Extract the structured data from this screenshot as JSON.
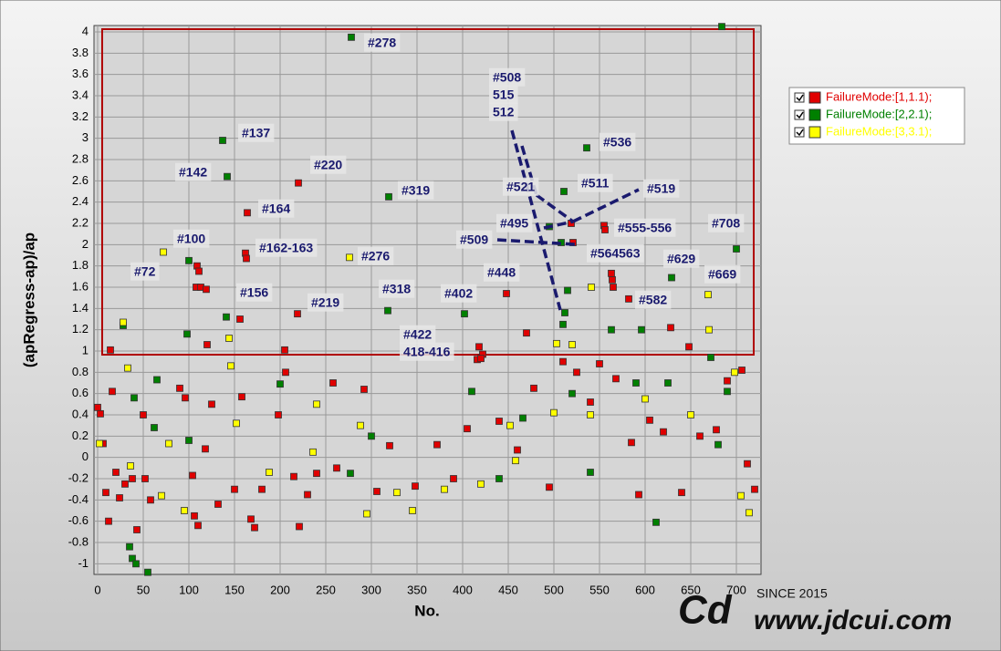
{
  "chart_data": {
    "type": "scatter",
    "x_label": "No.",
    "y_label": "(apRegress-ap)/ap",
    "xlim": [
      -4,
      727
    ],
    "ylim": [
      -1.1,
      4.06
    ],
    "xticks": [
      0,
      50,
      100,
      150,
      200,
      250,
      300,
      350,
      400,
      450,
      500,
      550,
      600,
      650,
      700
    ],
    "yticks": [
      -1,
      -0.8,
      -0.6,
      -0.4,
      -0.2,
      0,
      0.2,
      0.4,
      0.6,
      0.8,
      1,
      1.2,
      1.4,
      1.6,
      1.8,
      2,
      2.2,
      2.4,
      2.6,
      2.8,
      3,
      3.2,
      3.4,
      3.6,
      3.8,
      4
    ],
    "grid": true,
    "legend": "upper right",
    "series": [
      {
        "name": "FailureMode:[1,1.1);",
        "color": "#e00000",
        "x": [
          220,
          164,
          162,
          163,
          156,
          219,
          109,
          111,
          108,
          113,
          119,
          120,
          422,
          418,
          416,
          448,
          519,
          521,
          555,
          556,
          564,
          563,
          582,
          14,
          205,
          565,
          0,
          3,
          6,
          9,
          12,
          16,
          20,
          24,
          30,
          38,
          43,
          50,
          52,
          58,
          90,
          96,
          104,
          106,
          110,
          118,
          125,
          132,
          150,
          158,
          168,
          172,
          180,
          198,
          206,
          215,
          221,
          230,
          240,
          258,
          262,
          292,
          306,
          320,
          348,
          372,
          390,
          405,
          420,
          440,
          460,
          470,
          478,
          495,
          510,
          525,
          540,
          550,
          568,
          585,
          593,
          605,
          620,
          628,
          640,
          648,
          660,
          678,
          690,
          706,
          712,
          720
        ],
        "values": [
          2.58,
          2.3,
          1.92,
          1.87,
          1.3,
          1.35,
          1.8,
          1.75,
          1.6,
          1.6,
          1.58,
          1.06,
          0.97,
          1.04,
          0.92,
          1.54,
          2.2,
          2.02,
          2.18,
          2.14,
          1.67,
          1.73,
          1.49,
          1.01,
          1.01,
          1.6,
          0.47,
          0.41,
          0.13,
          -0.33,
          -0.6,
          0.62,
          -0.14,
          -0.38,
          -0.25,
          -0.2,
          -0.68,
          0.4,
          -0.2,
          -0.4,
          0.65,
          0.56,
          -0.17,
          -0.55,
          -0.64,
          0.08,
          0.5,
          -0.44,
          -0.3,
          0.57,
          -0.58,
          -0.66,
          -0.3,
          0.4,
          0.8,
          -0.18,
          -0.65,
          -0.35,
          -0.15,
          0.7,
          -0.1,
          0.64,
          -0.32,
          0.11,
          -0.27,
          0.12,
          -0.2,
          0.27,
          0.93,
          0.34,
          0.07,
          1.17,
          0.65,
          -0.28,
          0.9,
          0.8,
          0.52,
          0.88,
          0.74,
          0.14,
          -0.35,
          0.35,
          0.24,
          1.22,
          -0.33,
          1.04,
          0.2,
          0.26,
          0.72,
          0.82,
          -0.06,
          -0.3
        ]
      },
      {
        "name": "FailureMode:[2,2.1);",
        "color": "#008000",
        "x": [
          278,
          137,
          142,
          319,
          536,
          511,
          495,
          100,
          629,
          318,
          402,
          28,
          508,
          515,
          512,
          141,
          98,
          700,
          684,
          672,
          563,
          596,
          510,
          35,
          38,
          42,
          40,
          55,
          65,
          62,
          100,
          200,
          277,
          300,
          410,
          440,
          466,
          520,
          540,
          590,
          612,
          625,
          680,
          690
        ],
        "values": [
          3.95,
          2.98,
          2.64,
          2.45,
          2.91,
          2.5,
          2.17,
          1.85,
          1.69,
          1.38,
          1.35,
          1.24,
          2.02,
          1.57,
          1.36,
          1.32,
          1.16,
          1.96,
          4.05,
          0.94,
          1.2,
          1.2,
          1.25,
          -0.84,
          -0.95,
          -1.0,
          0.56,
          -1.08,
          0.73,
          0.28,
          0.16,
          0.69,
          -0.15,
          0.2,
          0.62,
          -0.2,
          0.37,
          0.6,
          -0.14,
          0.7,
          -0.61,
          0.7,
          0.12,
          0.62
        ]
      },
      {
        "name": "FailureMode:[3,3.1);",
        "color": "#ffff00",
        "x": [
          72,
          276,
          28,
          669,
          670,
          144,
          520,
          541,
          2,
          33,
          36,
          70,
          78,
          95,
          146,
          152,
          188,
          236,
          240,
          288,
          295,
          328,
          345,
          380,
          420,
          452,
          458,
          500,
          503,
          540,
          600,
          650,
          705,
          714,
          698
        ],
        "values": [
          1.93,
          1.88,
          1.27,
          1.53,
          1.2,
          1.12,
          1.06,
          1.6,
          0.13,
          0.84,
          -0.08,
          -0.36,
          0.13,
          -0.5,
          0.86,
          0.32,
          -0.14,
          0.05,
          0.5,
          0.3,
          -0.53,
          -0.33,
          -0.5,
          -0.3,
          -0.25,
          0.3,
          -0.03,
          0.42,
          1.07,
          0.4,
          0.55,
          0.4,
          -0.36,
          -0.52,
          0.8
        ]
      }
    ],
    "annotations": [
      "#278",
      "#137",
      "#142",
      "#220",
      "#319",
      "#164",
      "#100",
      "#162-163",
      "#276",
      "#72",
      "#156",
      "#219",
      "#318",
      "#402",
      "#422",
      "418-416",
      "#508",
      "515",
      "512",
      "#536",
      "#521",
      "#511",
      "#519",
      "#495",
      "#555-556",
      "#708",
      "#509",
      "#564563",
      "#629",
      "#448",
      "#669",
      "#582"
    ]
  },
  "watermark": {
    "since": "SINCE 2015",
    "site": "www.jdcui.com"
  }
}
